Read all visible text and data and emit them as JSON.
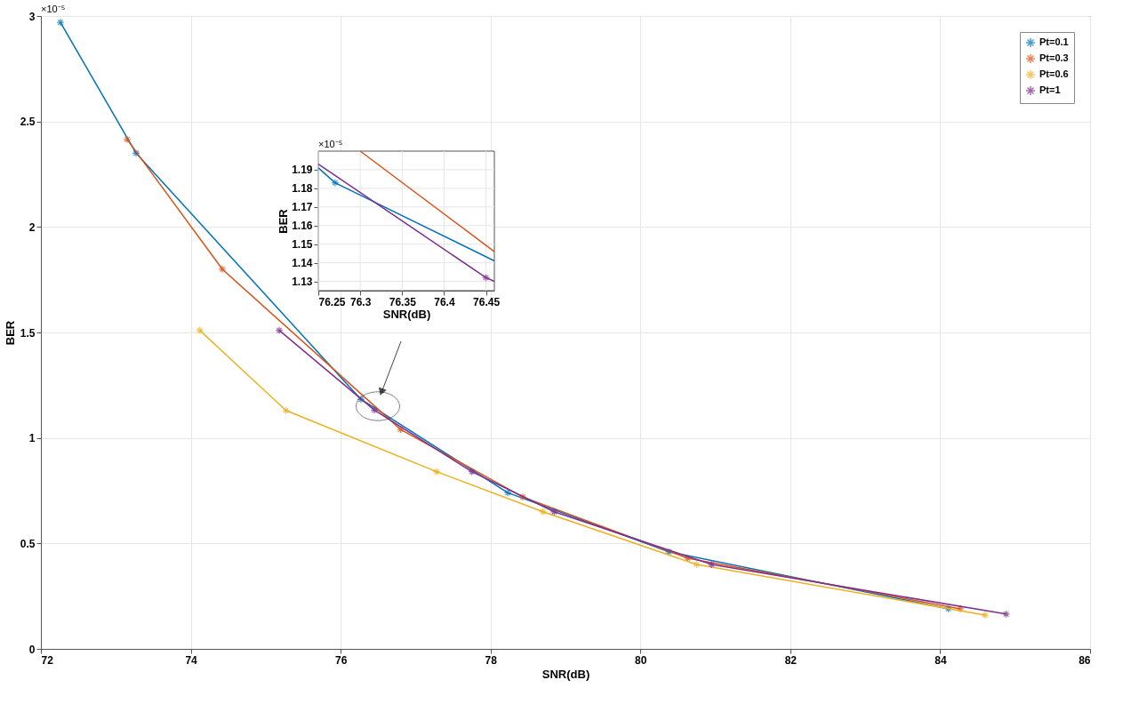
{
  "chart_data": [
    {
      "type": "line",
      "xlabel": "SNR(dB)",
      "ylabel": "BER",
      "xlim": [
        72,
        86
      ],
      "xticks": [
        72,
        74,
        76,
        78,
        80,
        82,
        84,
        86
      ],
      "ylim": [
        0,
        3
      ],
      "yticks": [
        0,
        0.5,
        1,
        1.5,
        2,
        2.5,
        3
      ],
      "grid": true,
      "legend": "top right",
      "marker": "cross",
      "annotations": [
        "×10⁻⁵"
      ],
      "series": [
        {
          "name": "Pt=0.1",
          "color": "#0072bd",
          "x": [
            72.26,
            73.27,
            76.27,
            78.23,
            80.38,
            84.11
          ],
          "values": [
            2.97,
            2.35,
            1.183,
            0.74,
            0.46,
            0.19
          ]
        },
        {
          "name": "Pt=0.3",
          "color": "#d95319",
          "x": [
            73.15,
            74.42,
            76.8,
            78.43,
            80.63,
            84.27
          ],
          "values": [
            2.415,
            1.8,
            1.04,
            0.72,
            0.43,
            0.19
          ]
        },
        {
          "name": "Pt=0.6",
          "color": "#edb120",
          "x": [
            74.12,
            75.27,
            77.28,
            78.7,
            80.75,
            84.6
          ],
          "values": [
            1.51,
            1.13,
            0.84,
            0.65,
            0.4,
            0.16
          ]
        },
        {
          "name": "Pt=1",
          "color": "#7e2f8e",
          "x": [
            75.18,
            76.45,
            77.75,
            78.85,
            80.95,
            84.88
          ],
          "values": [
            1.51,
            1.132,
            0.84,
            0.65,
            0.4,
            0.165
          ]
        }
      ]
    },
    {
      "type": "line",
      "xlabel": "SNR(dB)",
      "ylabel": "BER",
      "xlim": [
        76.25,
        76.46
      ],
      "xticks": [
        76.25,
        76.3,
        76.35,
        76.4,
        76.45
      ],
      "ylim": [
        1.125,
        1.2
      ],
      "yticks": [
        1.13,
        1.14,
        1.15,
        1.16,
        1.17,
        1.18,
        1.19
      ],
      "grid": true,
      "annotations": [
        "×10⁻⁵"
      ],
      "series": [
        {
          "color": "#0072bd",
          "x": [
            76.25,
            76.27,
            76.46
          ],
          "values": [
            1.191,
            1.183,
            1.141
          ]
        },
        {
          "color": "#d95319",
          "x": [
            76.3,
            76.46
          ],
          "values": [
            1.2,
            1.146
          ]
        },
        {
          "color": "#7e2f8e",
          "x": [
            76.25,
            76.45,
            76.46
          ],
          "values": [
            1.193,
            1.132,
            1.13
          ]
        },
        {
          "type": "scatter",
          "marker": "cross",
          "color": "#0072bd",
          "x": [
            76.27
          ],
          "values": [
            1.183
          ]
        },
        {
          "type": "scatter",
          "marker": "cross",
          "color": "#7e2f8e",
          "x": [
            76.45
          ],
          "values": [
            1.132
          ]
        }
      ]
    }
  ]
}
